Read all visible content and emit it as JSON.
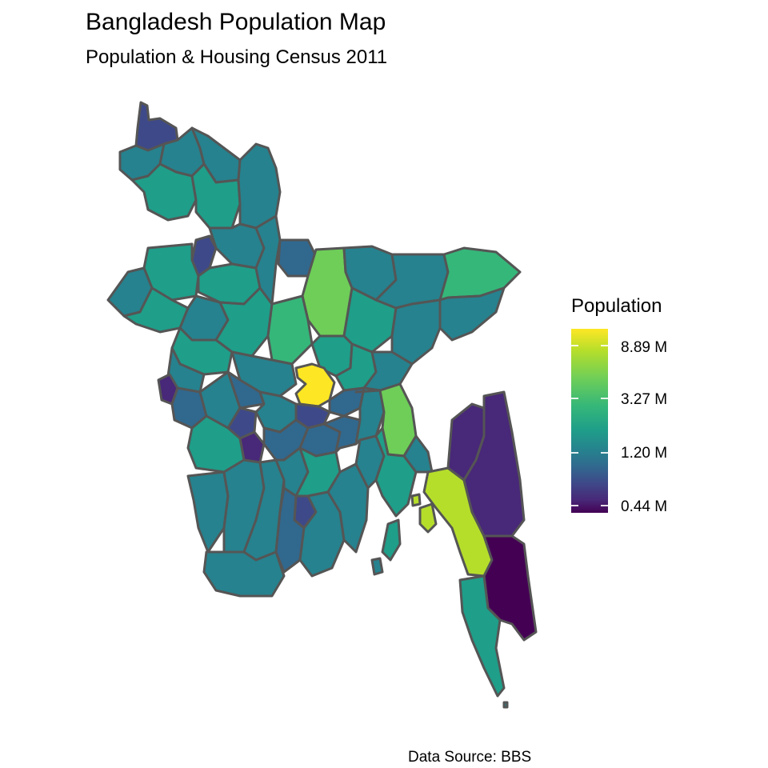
{
  "title": "Bangladesh Population Map",
  "subtitle": "Population & Housing Census 2011",
  "caption": "Data Source: BBS",
  "legend": {
    "title": "Population",
    "labels": [
      "8.89 M",
      "3.27 M",
      "1.20 M",
      "0.44 M"
    ],
    "scale": "log",
    "palette": [
      "#440154",
      "#482878",
      "#3e4989",
      "#31688e",
      "#26828e",
      "#1f9e89",
      "#35b779",
      "#6ece58",
      "#b5de2b",
      "#fde725"
    ]
  },
  "colors": {
    "border": "#555555",
    "background": "#ffffff"
  },
  "map": {
    "country": "Bangladesh",
    "fill_variable": "Population"
  }
}
